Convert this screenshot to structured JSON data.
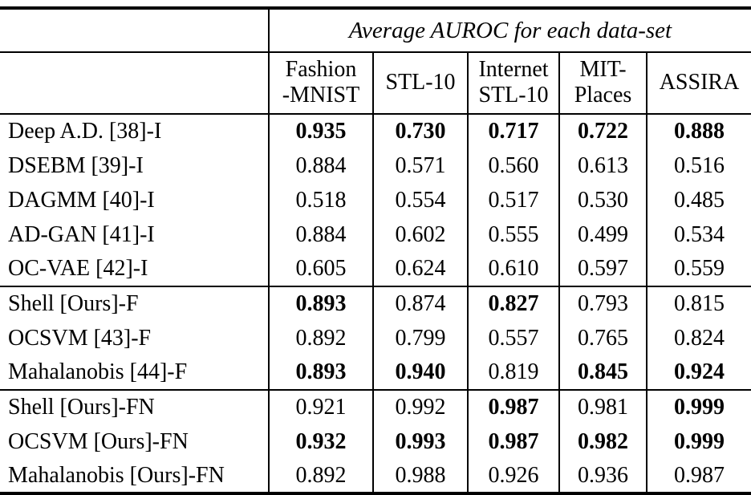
{
  "colors": {
    "background": "#ffffff",
    "text": "#000000",
    "rule": "#000000"
  },
  "table": {
    "spanner_label": "Average AUROC for each data-set",
    "row_header_label": "",
    "columns": [
      "Fashion\n-MNIST",
      "STL-10",
      "Internet\nSTL-10",
      "MIT-\nPlaces",
      "ASSIRA"
    ],
    "groups": [
      {
        "name": "image-space-methods",
        "rows": [
          {
            "label": "Deep A.D. [38]-I",
            "values": [
              "0.935",
              "0.730",
              "0.717",
              "0.722",
              "0.888"
            ],
            "bold": [
              true,
              true,
              true,
              true,
              true
            ]
          },
          {
            "label": "DSEBM [39]-I",
            "values": [
              "0.884",
              "0.571",
              "0.560",
              "0.613",
              "0.516"
            ],
            "bold": [
              false,
              false,
              false,
              false,
              false
            ]
          },
          {
            "label": "DAGMM [40]-I",
            "values": [
              "0.518",
              "0.554",
              "0.517",
              "0.530",
              "0.485"
            ],
            "bold": [
              false,
              false,
              false,
              false,
              false
            ]
          },
          {
            "label": "AD-GAN [41]-I",
            "values": [
              "0.884",
              "0.602",
              "0.555",
              "0.499",
              "0.534"
            ],
            "bold": [
              false,
              false,
              false,
              false,
              false
            ]
          },
          {
            "label": "OC-VAE [42]-I",
            "values": [
              "0.605",
              "0.624",
              "0.610",
              "0.597",
              "0.559"
            ],
            "bold": [
              false,
              false,
              false,
              false,
              false
            ]
          }
        ]
      },
      {
        "name": "feature-space-methods",
        "rows": [
          {
            "label": "Shell [Ours]-F",
            "values": [
              "0.893",
              "0.874",
              "0.827",
              "0.793",
              "0.815"
            ],
            "bold": [
              true,
              false,
              true,
              false,
              false
            ]
          },
          {
            "label": "OCSVM [43]-F",
            "values": [
              "0.892",
              "0.799",
              "0.557",
              "0.765",
              "0.824"
            ],
            "bold": [
              false,
              false,
              false,
              false,
              false
            ]
          },
          {
            "label": "Mahalanobis [44]-F",
            "values": [
              "0.893",
              "0.940",
              "0.819",
              "0.845",
              "0.924"
            ],
            "bold": [
              true,
              true,
              false,
              true,
              true
            ]
          }
        ]
      },
      {
        "name": "feature-norm-methods",
        "rows": [
          {
            "label": "Shell [Ours]-FN",
            "values": [
              "0.921",
              "0.992",
              "0.987",
              "0.981",
              "0.999"
            ],
            "bold": [
              false,
              false,
              true,
              false,
              true
            ]
          },
          {
            "label": "OCSVM [Ours]-FN",
            "values": [
              "0.932",
              "0.993",
              "0.987",
              "0.982",
              "0.999"
            ],
            "bold": [
              true,
              true,
              true,
              true,
              true
            ]
          },
          {
            "label": "Mahalanobis [Ours]-FN",
            "values": [
              "0.892",
              "0.988",
              "0.926",
              "0.936",
              "0.987"
            ],
            "bold": [
              false,
              false,
              false,
              false,
              false
            ]
          }
        ]
      }
    ]
  }
}
